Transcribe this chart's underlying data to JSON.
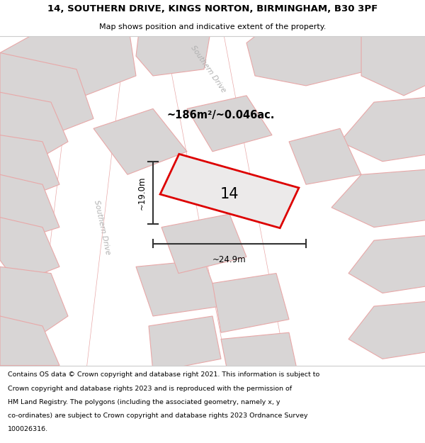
{
  "title_line1": "14, SOUTHERN DRIVE, KINGS NORTON, BIRMINGHAM, B30 3PF",
  "title_line2": "Map shows position and indicative extent of the property.",
  "area_text": "~186m²/~0.046ac.",
  "label_14": "14",
  "dim_height": "~19.0m",
  "dim_width": "~24.9m",
  "road_label_diag": "Southern Drive",
  "road_label_vert": "Southern Drive",
  "footer_lines": [
    "Contains OS data © Crown copyright and database right 2021. This information is subject to",
    "Crown copyright and database rights 2023 and is reproduced with the permission of",
    "HM Land Registry. The polygons (including the associated geometry, namely x, y",
    "co-ordinates) are subject to Crown copyright and database rights 2023 Ordnance Survey",
    "100026316."
  ],
  "map_bg": "#f2f0f0",
  "plot_color_fill": "#eceaea",
  "plot_color_edge": "#dd0000",
  "other_plot_fill": "#d8d5d5",
  "other_plot_edge": "#e8a8a8",
  "road_fill": "#ffffff",
  "dim_line_color": "#333333",
  "title_bg": "#ffffff",
  "footer_bg": "#ffffff",
  "sep_line_color": "#cccccc"
}
